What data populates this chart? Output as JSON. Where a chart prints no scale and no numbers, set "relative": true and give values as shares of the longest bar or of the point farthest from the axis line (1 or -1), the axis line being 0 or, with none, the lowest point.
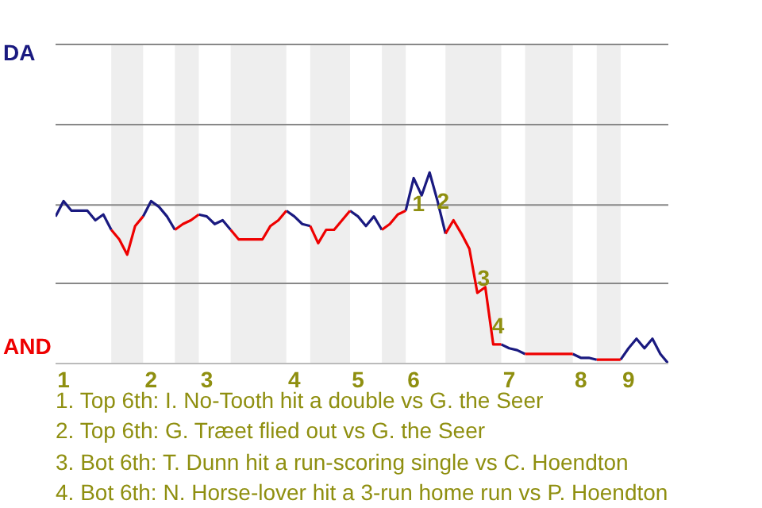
{
  "chart_data": {
    "type": "line",
    "categories": [
      null,
      "1",
      null,
      null,
      null,
      null,
      null,
      null,
      null,
      null,
      null,
      null,
      "2",
      null,
      null,
      null,
      null,
      null,
      null,
      "3",
      null,
      null,
      null,
      null,
      null,
      null,
      null,
      null,
      null,
      null,
      "4",
      null,
      null,
      null,
      null,
      null,
      null,
      null,
      "5",
      null,
      null,
      null,
      null,
      null,
      null,
      "6",
      null,
      null,
      null,
      null,
      null,
      null,
      null,
      null,
      null,
      null,
      null,
      "7",
      null,
      null,
      null,
      null,
      null,
      null,
      null,
      null,
      "8",
      null,
      null,
      null,
      null,
      null,
      "9",
      null,
      null,
      null,
      null,
      null
    ],
    "relative": true,
    "series": [
      {
        "name": "DA",
        "color": "#1a1a80",
        "values": [
          0.77,
          0.85,
          0.8,
          0.8,
          0.8,
          0.75,
          0.78,
          0.7,
          null,
          null,
          null,
          0.77,
          0.85,
          0.82,
          0.77,
          0.7,
          null,
          null,
          0.78,
          0.77,
          0.73,
          0.75,
          0.7,
          null,
          null,
          null,
          null,
          null,
          null,
          0.8,
          0.77,
          0.73,
          0.72,
          null,
          null,
          null,
          null,
          0.8,
          0.77,
          0.72,
          0.77,
          0.7,
          null,
          null,
          0.8,
          0.97,
          0.88,
          1,
          0.85,
          0.68,
          null,
          null,
          null,
          null,
          null,
          null,
          0.1,
          0.08,
          0.07,
          0.05,
          null,
          null,
          null,
          null,
          null,
          0.05,
          0.03,
          0.03,
          0.02,
          null,
          null,
          0.02,
          0.08,
          0.13,
          0.08,
          0.13,
          0.05,
          0
        ],
        "value_labels": [
          null,
          null,
          null,
          null,
          null,
          null,
          null,
          null,
          null,
          null,
          null,
          null,
          null,
          null,
          null,
          null,
          null,
          null,
          null,
          null,
          null,
          null,
          null,
          null,
          null,
          null,
          null,
          null,
          null,
          null,
          null,
          null,
          null,
          null,
          null,
          null,
          null,
          null,
          null,
          null,
          null,
          null,
          null,
          null,
          null,
          null,
          null,
          null,
          null,
          null,
          null,
          null,
          null,
          null,
          null,
          null,
          null,
          null,
          null,
          null,
          null,
          null,
          null,
          null,
          null,
          null,
          null,
          null,
          null,
          null,
          null,
          null,
          null,
          null,
          null,
          null,
          null,
          null
        ]
      },
      {
        "name": "AND",
        "color": "#ee0000",
        "values": [
          null,
          null,
          null,
          null,
          null,
          null,
          null,
          0.7,
          0.65,
          0.57,
          0.72,
          0.77,
          null,
          null,
          null,
          0.7,
          0.73,
          0.75,
          0.78,
          null,
          null,
          null,
          0.7,
          0.65,
          0.65,
          0.65,
          0.65,
          0.72,
          0.75,
          0.8,
          null,
          null,
          0.72,
          0.63,
          0.7,
          0.7,
          0.75,
          0.8,
          null,
          null,
          null,
          0.7,
          0.73,
          0.78,
          0.8,
          null,
          null,
          null,
          null,
          0.68,
          0.75,
          0.68,
          0.6,
          0.37,
          0.4,
          0.1,
          0.1,
          null,
          null,
          0.05,
          0.05,
          0.05,
          0.05,
          0.05,
          0.05,
          0.05,
          null,
          null,
          0.02,
          0.02,
          0.02,
          0.02,
          null,
          null,
          null,
          null,
          null,
          null
        ],
        "value_labels": [
          null,
          null,
          null,
          null,
          null,
          null,
          null,
          null,
          null,
          null,
          null,
          null,
          null,
          null,
          null,
          null,
          null,
          null,
          null,
          null,
          null,
          null,
          null,
          null,
          null,
          null,
          null,
          null,
          null,
          null,
          null,
          null,
          null,
          null,
          null,
          null,
          null,
          null,
          null,
          null,
          null,
          null,
          null,
          null,
          null,
          null,
          null,
          null,
          null,
          null,
          null,
          null,
          null,
          null,
          null,
          null,
          null,
          null,
          null,
          null,
          null,
          null,
          null,
          null,
          null,
          null,
          null,
          null,
          null,
          null,
          null,
          null,
          null,
          null,
          null,
          null,
          null,
          null
        ]
      }
    ],
    "legend": "left",
    "ref_lines": [
      {
        "axis": "y",
        "value": 0.42,
        "color": "#888888"
      },
      {
        "axis": "y",
        "value": 0.83,
        "color": "#888888"
      },
      {
        "axis": "y",
        "value": 1.25,
        "color": "#888888"
      },
      {
        "axis": "y",
        "value": 1.67,
        "color": "#888888"
      }
    ],
    "annotations": [
      {
        "text": "1",
        "y": 0.84
      },
      {
        "text": "2",
        "y": 0.85
      },
      {
        "text": "3",
        "y": 0.45
      },
      {
        "text": "4",
        "y": 0.2
      },
      "1. Top 6th: I. No-Tooth hit a double vs G. the Seer",
      "2. Top 6th: G. Træet flied out vs G. the Seer",
      "3. Bot 6th: T. Dunn hit a run-scoring single vs C. Hoendton",
      "4. Bot 6th: N. Horse-lover hit a 3-run home run vs P. Hoendton"
    ]
  }
}
